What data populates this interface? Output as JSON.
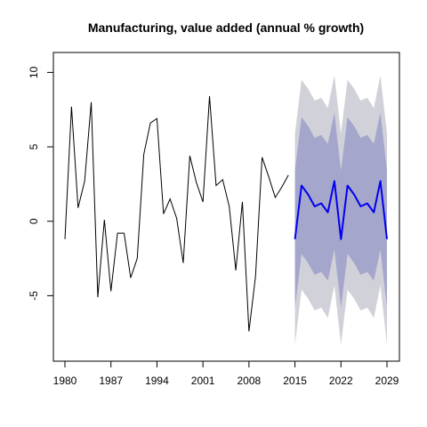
{
  "chart_data": {
    "type": "line",
    "title": "Manufacturing, value added (annual % growth)",
    "xlabel": "",
    "ylabel": "",
    "xlim": [
      1980,
      2029
    ],
    "ylim": [
      -8.8,
      10.8
    ],
    "x_ticks": [
      1980,
      1987,
      1994,
      2001,
      2008,
      2015,
      2022,
      2029
    ],
    "y_ticks": [
      -5,
      0,
      5,
      10
    ],
    "grid": false,
    "colors": {
      "history": "#000000",
      "forecast": "#0000ee",
      "band_95": "#d1d1d9",
      "band_80": "#a4a6cc"
    },
    "series": [
      {
        "role": "history",
        "x": [
          1980,
          1981,
          1982,
          1983,
          1984,
          1985,
          1986,
          1987,
          1988,
          1989,
          1990,
          1991,
          1992,
          1993,
          1994,
          1995,
          1996,
          1997,
          1998,
          1999,
          2000,
          2001,
          2002,
          2003,
          2004,
          2005,
          2006,
          2007,
          2008,
          2009,
          2010,
          2011,
          2012,
          2013,
          2014
        ],
        "y": [
          -1.2,
          7.7,
          0.9,
          2.7,
          8.0,
          -5.1,
          0.1,
          -4.7,
          -0.8,
          -0.8,
          -3.8,
          -2.5,
          4.5,
          6.6,
          6.9,
          0.5,
          1.5,
          0.2,
          -2.8,
          4.4,
          2.6,
          1.3,
          8.4,
          2.4,
          2.8,
          1.0,
          -3.3,
          1.3,
          -7.4,
          -3.7,
          4.3,
          3.0,
          1.6,
          2.3,
          3.1
        ]
      },
      {
        "role": "forecast",
        "x": [
          2015,
          2016,
          2017,
          2018,
          2019,
          2020,
          2021,
          2022,
          2023,
          2024,
          2025,
          2026,
          2027,
          2028,
          2029
        ],
        "y": [
          -1.2,
          2.4,
          1.8,
          1.0,
          1.2,
          0.6,
          2.7,
          -1.2,
          2.4,
          1.8,
          1.0,
          1.2,
          0.6,
          2.7,
          -1.2
        ],
        "lo80": [
          -5.8,
          -2.2,
          -2.8,
          -3.6,
          -3.4,
          -4.0,
          -1.9,
          -5.8,
          -2.2,
          -2.8,
          -3.6,
          -3.4,
          -4.0,
          -1.9,
          -5.8
        ],
        "hi80": [
          3.4,
          7.0,
          6.4,
          5.6,
          5.8,
          5.2,
          7.3,
          3.4,
          7.0,
          6.4,
          5.6,
          5.8,
          5.2,
          7.3,
          3.4
        ],
        "lo95": [
          -8.3,
          -4.6,
          -5.2,
          -6.0,
          -5.8,
          -6.5,
          -4.3,
          -8.3,
          -4.6,
          -5.2,
          -6.0,
          -5.8,
          -6.5,
          -4.3,
          -8.3
        ],
        "hi95": [
          5.9,
          9.5,
          8.9,
          8.1,
          8.3,
          7.6,
          9.8,
          5.9,
          9.5,
          8.9,
          8.1,
          8.3,
          7.6,
          9.8,
          5.9
        ]
      }
    ]
  }
}
